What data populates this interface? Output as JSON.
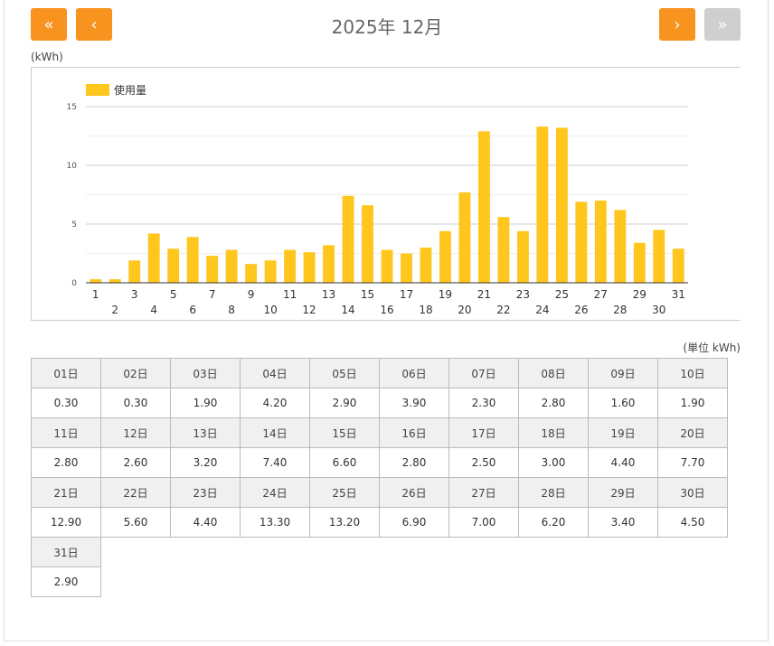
{
  "header": {
    "title": "2025年 12月",
    "first_label": "«",
    "prev_label": "‹",
    "next_label": "›",
    "last_label": "»",
    "accent_color": "#f7931e",
    "disabled_color": "#cfcfcf"
  },
  "chart_unit": "(kWh)",
  "table_unit": "(単位 kWh)",
  "chart_data": {
    "type": "bar",
    "legend": [
      "使用量"
    ],
    "legend_position": "top-left",
    "bar_color": "#ffc61e",
    "categories": [
      "1",
      "2",
      "3",
      "4",
      "5",
      "6",
      "7",
      "8",
      "9",
      "10",
      "11",
      "12",
      "13",
      "14",
      "15",
      "16",
      "17",
      "18",
      "19",
      "20",
      "21",
      "22",
      "23",
      "24",
      "25",
      "26",
      "27",
      "28",
      "29",
      "30",
      "31"
    ],
    "series": [
      {
        "name": "使用量",
        "values": [
          0.3,
          0.3,
          1.9,
          4.2,
          2.9,
          3.9,
          2.3,
          2.8,
          1.6,
          1.9,
          2.8,
          2.6,
          3.2,
          7.4,
          6.6,
          2.8,
          2.5,
          3.0,
          4.4,
          7.7,
          12.9,
          5.6,
          4.4,
          13.3,
          13.2,
          6.9,
          7.0,
          6.2,
          3.4,
          4.5,
          2.9
        ]
      }
    ],
    "yticks": [
      0,
      5,
      10,
      15
    ],
    "ylim": [
      0,
      15
    ],
    "grid": true
  },
  "table": [
    {
      "day": "01日",
      "value": "0.30"
    },
    {
      "day": "02日",
      "value": "0.30"
    },
    {
      "day": "03日",
      "value": "1.90"
    },
    {
      "day": "04日",
      "value": "4.20"
    },
    {
      "day": "05日",
      "value": "2.90"
    },
    {
      "day": "06日",
      "value": "3.90"
    },
    {
      "day": "07日",
      "value": "2.30"
    },
    {
      "day": "08日",
      "value": "2.80"
    },
    {
      "day": "09日",
      "value": "1.60"
    },
    {
      "day": "10日",
      "value": "1.90"
    },
    {
      "day": "11日",
      "value": "2.80"
    },
    {
      "day": "12日",
      "value": "2.60"
    },
    {
      "day": "13日",
      "value": "3.20"
    },
    {
      "day": "14日",
      "value": "7.40"
    },
    {
      "day": "15日",
      "value": "6.60"
    },
    {
      "day": "16日",
      "value": "2.80"
    },
    {
      "day": "17日",
      "value": "2.50"
    },
    {
      "day": "18日",
      "value": "3.00"
    },
    {
      "day": "19日",
      "value": "4.40"
    },
    {
      "day": "20日",
      "value": "7.70"
    },
    {
      "day": "21日",
      "value": "12.90"
    },
    {
      "day": "22日",
      "value": "5.60"
    },
    {
      "day": "23日",
      "value": "4.40"
    },
    {
      "day": "24日",
      "value": "13.30"
    },
    {
      "day": "25日",
      "value": "13.20"
    },
    {
      "day": "26日",
      "value": "6.90"
    },
    {
      "day": "27日",
      "value": "7.00"
    },
    {
      "day": "28日",
      "value": "6.20"
    },
    {
      "day": "29日",
      "value": "3.40"
    },
    {
      "day": "30日",
      "value": "4.50"
    },
    {
      "day": "31日",
      "value": "2.90"
    }
  ]
}
